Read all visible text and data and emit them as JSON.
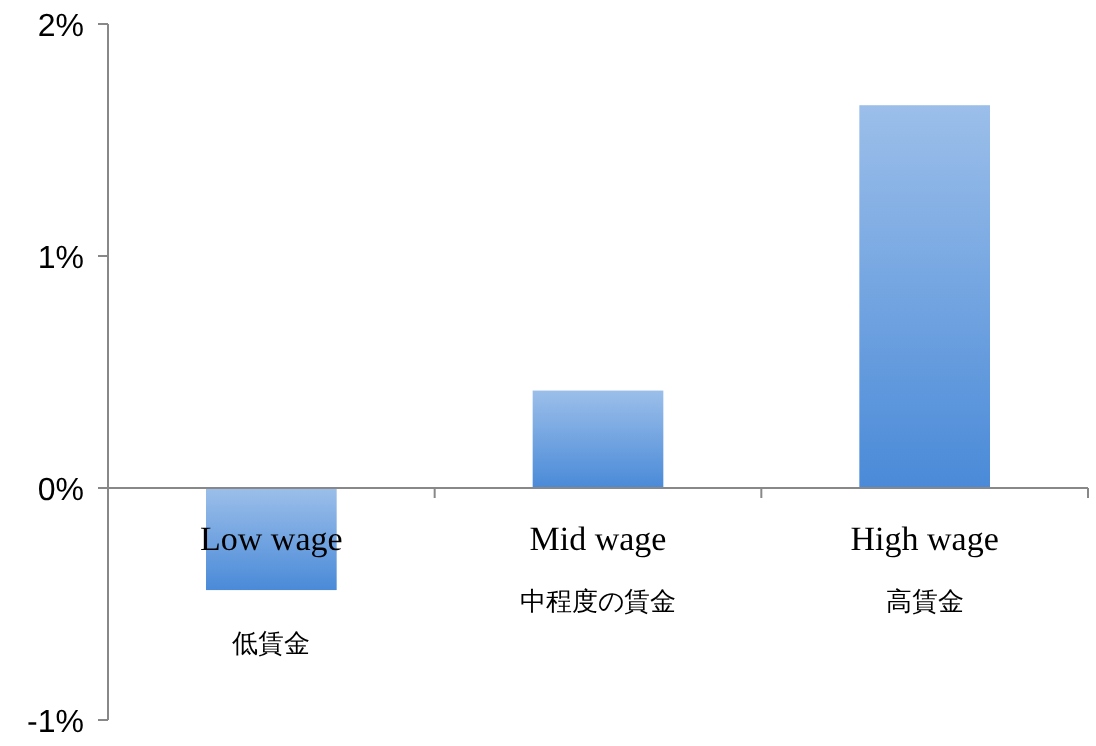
{
  "chart_data": {
    "type": "bar",
    "categories": [
      "Low wage\n低賃金",
      "Mid wage\n中程度の賃金",
      "High wage\n高賃金"
    ],
    "values": [
      -0.44,
      0.42,
      1.65
    ],
    "color": "#4a8ad8",
    "ylim": [
      -1,
      2
    ],
    "yticks": [
      {
        "value": -1,
        "label": "-1%"
      },
      {
        "value": 0,
        "label": "0%"
      },
      {
        "value": 1,
        "label": "1%"
      },
      {
        "value": 2,
        "label": "2%"
      }
    ],
    "grid": false
  }
}
